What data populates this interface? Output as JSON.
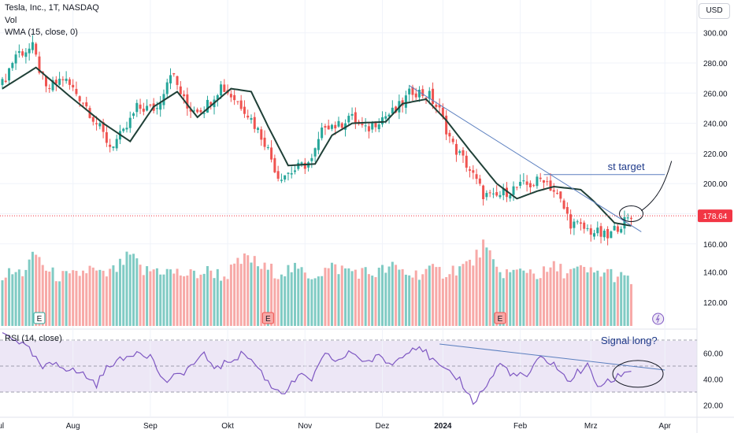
{
  "header": {
    "title": "Tesla, Inc., 1T, NASDAQ",
    "vol_label": "Vol",
    "wma_label": "WMA (15, close, 0)",
    "rsi_label": "RSI (14, close)",
    "currency_button": "USD"
  },
  "colors": {
    "up": "#26a69a",
    "down": "#ef5350",
    "up_vol": "#80cbc4",
    "down_vol": "#f7a9a7",
    "wma": "#1f4037",
    "trendline": "#5b7fbf",
    "rsi": "#7e57c2",
    "rsi_band": "#ede7f6",
    "price_line": "#f23645",
    "annotation": "#1f3a8a"
  },
  "chart_data": {
    "type": "candlestick",
    "symbol": "Tesla, Inc., 1T, NASDAQ",
    "currency": "USD",
    "last_price": 178.64,
    "price_axis": {
      "ticks": [
        300,
        280,
        260,
        240,
        220,
        200,
        180,
        160
      ],
      "ylim": [
        155,
        310
      ]
    },
    "volume_axis": {
      "ticks": [
        140,
        120
      ]
    },
    "rsi_axis": {
      "ticks": [
        60,
        40,
        20
      ],
      "band": [
        30,
        70
      ]
    },
    "x_labels": [
      "Jul",
      "Aug",
      "Sep",
      "Okt",
      "Nov",
      "Dez",
      "2024",
      "Feb",
      "Mrz",
      "Apr"
    ],
    "wma_anchors": [
      [
        0,
        263
      ],
      [
        10,
        277
      ],
      [
        20,
        258
      ],
      [
        30,
        240
      ],
      [
        38,
        228
      ],
      [
        45,
        251
      ],
      [
        52,
        261
      ],
      [
        58,
        244
      ],
      [
        68,
        263
      ],
      [
        74,
        261
      ],
      [
        79,
        238
      ],
      [
        85,
        212
      ],
      [
        93,
        213
      ],
      [
        98,
        232
      ],
      [
        104,
        240
      ],
      [
        114,
        241
      ],
      [
        119,
        253
      ],
      [
        126,
        256
      ],
      [
        132,
        242
      ],
      [
        139,
        222
      ],
      [
        147,
        200
      ],
      [
        153,
        190
      ],
      [
        159,
        195
      ],
      [
        164,
        198
      ],
      [
        172,
        196
      ],
      [
        176,
        188
      ],
      [
        182,
        174
      ],
      [
        187,
        172
      ]
    ],
    "price_anchors": [
      [
        0,
        266
      ],
      [
        4,
        286
      ],
      [
        9,
        290
      ],
      [
        13,
        262
      ],
      [
        18,
        270
      ],
      [
        24,
        255
      ],
      [
        28,
        240
      ],
      [
        32,
        225
      ],
      [
        36,
        233
      ],
      [
        40,
        250
      ],
      [
        46,
        250
      ],
      [
        50,
        275
      ],
      [
        55,
        250
      ],
      [
        60,
        250
      ],
      [
        65,
        265
      ],
      [
        72,
        250
      ],
      [
        78,
        228
      ],
      [
        82,
        205
      ],
      [
        86,
        208
      ],
      [
        92,
        215
      ],
      [
        96,
        240
      ],
      [
        100,
        238
      ],
      [
        103,
        245
      ],
      [
        108,
        235
      ],
      [
        112,
        243
      ],
      [
        117,
        248
      ],
      [
        122,
        262
      ],
      [
        127,
        258
      ],
      [
        130,
        248
      ],
      [
        134,
        225
      ],
      [
        138,
        213
      ],
      [
        143,
        193
      ],
      [
        146,
        190
      ],
      [
        150,
        195
      ],
      [
        154,
        198
      ],
      [
        158,
        200
      ],
      [
        161,
        204
      ],
      [
        164,
        195
      ],
      [
        166,
        188
      ],
      [
        169,
        174
      ],
      [
        173,
        170
      ],
      [
        176,
        168
      ],
      [
        180,
        164
      ],
      [
        183,
        172
      ],
      [
        187,
        177
      ]
    ],
    "volume_anchors": [
      [
        0,
        138
      ],
      [
        6,
        140
      ],
      [
        10,
        152
      ],
      [
        14,
        139
      ],
      [
        20,
        136
      ],
      [
        26,
        142
      ],
      [
        30,
        137
      ],
      [
        34,
        142
      ],
      [
        38,
        151
      ],
      [
        42,
        140
      ],
      [
        46,
        142
      ],
      [
        50,
        140
      ],
      [
        56,
        138
      ],
      [
        62,
        141
      ],
      [
        66,
        137
      ],
      [
        70,
        145
      ],
      [
        73,
        150
      ],
      [
        77,
        143
      ],
      [
        82,
        140
      ],
      [
        86,
        142
      ],
      [
        92,
        138
      ],
      [
        98,
        143
      ],
      [
        104,
        141
      ],
      [
        110,
        139
      ],
      [
        116,
        143
      ],
      [
        122,
        138
      ],
      [
        126,
        141
      ],
      [
        131,
        140
      ],
      [
        136,
        143
      ],
      [
        140,
        147
      ],
      [
        143,
        158
      ],
      [
        147,
        141
      ],
      [
        152,
        139
      ],
      [
        156,
        142
      ],
      [
        160,
        138
      ],
      [
        164,
        143
      ],
      [
        168,
        140
      ],
      [
        172,
        141
      ],
      [
        176,
        139
      ],
      [
        180,
        140
      ],
      [
        184,
        136
      ],
      [
        187,
        134
      ]
    ],
    "rsi_anchors": [
      [
        0,
        75
      ],
      [
        4,
        71
      ],
      [
        8,
        62
      ],
      [
        12,
        48
      ],
      [
        16,
        53
      ],
      [
        20,
        47
      ],
      [
        24,
        44
      ],
      [
        28,
        36
      ],
      [
        32,
        52
      ],
      [
        36,
        55
      ],
      [
        40,
        62
      ],
      [
        44,
        58
      ],
      [
        48,
        38
      ],
      [
        52,
        42
      ],
      [
        56,
        50
      ],
      [
        60,
        58
      ],
      [
        64,
        48
      ],
      [
        68,
        55
      ],
      [
        72,
        60
      ],
      [
        76,
        49
      ],
      [
        80,
        34
      ],
      [
        84,
        30
      ],
      [
        88,
        42
      ],
      [
        92,
        40
      ],
      [
        96,
        58
      ],
      [
        100,
        54
      ],
      [
        104,
        61
      ],
      [
        108,
        53
      ],
      [
        112,
        57
      ],
      [
        116,
        51
      ],
      [
        120,
        62
      ],
      [
        124,
        66
      ],
      [
        128,
        54
      ],
      [
        132,
        45
      ],
      [
        136,
        40
      ],
      [
        140,
        22
      ],
      [
        144,
        35
      ],
      [
        148,
        52
      ],
      [
        152,
        43
      ],
      [
        156,
        42
      ],
      [
        160,
        56
      ],
      [
        164,
        52
      ],
      [
        168,
        38
      ],
      [
        171,
        45
      ],
      [
        174,
        50
      ],
      [
        177,
        35
      ],
      [
        181,
        38
      ],
      [
        184,
        44
      ],
      [
        187,
        47
      ]
    ],
    "trendlines": [
      {
        "pane": "price",
        "from": [
          121,
          265
        ],
        "to": [
          190,
          168
        ]
      },
      {
        "pane": "price",
        "from": [
          161,
          206
        ],
        "to": [
          197,
          206
        ]
      },
      {
        "pane": "rsi",
        "from": [
          130,
          67
        ],
        "to": [
          197,
          47
        ]
      }
    ],
    "annotations": [
      {
        "pane": "price",
        "text": "st target",
        "at": [
          180,
          209
        ]
      },
      {
        "pane": "rsi",
        "text": "Signal long?",
        "at": [
          178,
          67
        ]
      }
    ],
    "earnings_markers": [
      "E",
      "E",
      "E"
    ]
  }
}
